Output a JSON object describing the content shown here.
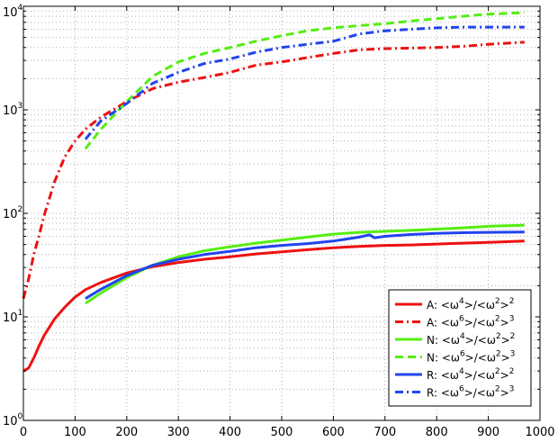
{
  "chart_data": {
    "type": "line",
    "title": "",
    "xlabel": "",
    "ylabel": "",
    "xlim": [
      0,
      1000
    ],
    "ylim": [
      1,
      10000
    ],
    "yscale": "log",
    "grid": true,
    "legend_placement": "bottom-right",
    "x_ticks": [
      "0",
      "100",
      "200",
      "300",
      "400",
      "500",
      "600",
      "700",
      "800",
      "900",
      "1000"
    ],
    "y_ticks": [
      {
        "base": "10",
        "exp": "0"
      },
      {
        "base": "10",
        "exp": "1"
      },
      {
        "base": "10",
        "exp": "2"
      },
      {
        "base": "10",
        "exp": "3"
      },
      {
        "base": "10",
        "exp": "4"
      }
    ],
    "series": [
      {
        "name": "A: <ω⁴>/<ω²>²",
        "legend": {
          "prefix": "A: <ω",
          "p1": "4",
          "mid": ">/<ω",
          "p2": "2",
          "close": ">",
          "p3": "2"
        },
        "color": "#ee1111",
        "style": "solid",
        "x": [
          0,
          10,
          20,
          30,
          40,
          60,
          80,
          100,
          120,
          150,
          200,
          250,
          300,
          350,
          400,
          450,
          500,
          550,
          600,
          650,
          700,
          750,
          800,
          850,
          900,
          970
        ],
        "y": [
          3.0,
          3.2,
          4.0,
          5.2,
          6.6,
          9.5,
          12.4,
          15.5,
          18.3,
          21.5,
          26.5,
          30.5,
          33.5,
          36.0,
          38.0,
          40.5,
          42.5,
          44.5,
          46.5,
          48.0,
          49.0,
          49.5,
          50.5,
          51.5,
          52.5,
          54.0
        ]
      },
      {
        "name": "A: <ω⁶>/<ω²>³",
        "legend": {
          "prefix": "A: <ω",
          "p1": "6",
          "mid": ">/<ω",
          "p2": "2",
          "close": ">",
          "p3": "3"
        },
        "color": "#ee1111",
        "style": "dashdot",
        "x": [
          0,
          10,
          20,
          30,
          40,
          60,
          80,
          100,
          120,
          150,
          200,
          250,
          300,
          350,
          400,
          450,
          500,
          550,
          600,
          650,
          700,
          750,
          800,
          850,
          900,
          970
        ],
        "y": [
          15,
          23,
          40,
          60,
          95,
          200,
          350,
          500,
          650,
          850,
          1200,
          1600,
          1850,
          2050,
          2300,
          2700,
          2900,
          3200,
          3500,
          3800,
          3900,
          3950,
          4000,
          4100,
          4300,
          4500
        ]
      },
      {
        "name": "N: <ω⁴>/<ω²>²",
        "legend": {
          "prefix": "N: <ω",
          "p1": "4",
          "mid": ">/<ω",
          "p2": "2",
          "close": ">",
          "p3": "2"
        },
        "color": "#55ee11",
        "style": "solid",
        "x": [
          120,
          150,
          200,
          250,
          300,
          350,
          400,
          450,
          500,
          550,
          600,
          650,
          700,
          750,
          800,
          850,
          900,
          970
        ],
        "y": [
          13.5,
          17.0,
          24.0,
          31.5,
          38.0,
          43.5,
          47.5,
          51.5,
          55.0,
          59.0,
          63.0,
          65.5,
          67.0,
          68.5,
          70.5,
          72.5,
          75.0,
          77.0
        ]
      },
      {
        "name": "N: <ω⁶>/<ω²>³",
        "legend": {
          "prefix": "N: <ω",
          "p1": "6",
          "mid": ">/<ω",
          "p2": "2",
          "close": ">",
          "p3": "3"
        },
        "color": "#55ee11",
        "style": "dash",
        "x": [
          120,
          150,
          200,
          250,
          300,
          350,
          400,
          450,
          500,
          550,
          600,
          650,
          700,
          750,
          800,
          850,
          900,
          970
        ],
        "y": [
          420,
          650,
          1200,
          2100,
          2900,
          3500,
          4000,
          4600,
          5200,
          5800,
          6200,
          6500,
          6800,
          7200,
          7600,
          8000,
          8400,
          8700
        ]
      },
      {
        "name": "R: <ω⁴>/<ω²>²",
        "legend": {
          "prefix": "R: <ω",
          "p1": "4",
          "mid": ">/<ω",
          "p2": "2",
          "close": ">",
          "p3": "2"
        },
        "color": "#2244ee",
        "style": "solid",
        "x": [
          120,
          150,
          200,
          250,
          300,
          350,
          400,
          450,
          500,
          550,
          600,
          650,
          670,
          680,
          700,
          750,
          800,
          850,
          900,
          970
        ],
        "y": [
          15.0,
          18.5,
          25.0,
          31.5,
          36.0,
          40.0,
          43.0,
          46.5,
          49.0,
          51.0,
          54.0,
          59.0,
          62.0,
          58.0,
          60.0,
          62.5,
          64.0,
          65.0,
          65.5,
          66.0
        ]
      },
      {
        "name": "R: <ω⁶>/<ω²>³",
        "legend": {
          "prefix": "R: <ω",
          "p1": "6",
          "mid": ">/<ω",
          "p2": "2",
          "close": ">",
          "p3": "3"
        },
        "color": "#2244ee",
        "style": "dashdot",
        "x": [
          120,
          150,
          200,
          250,
          300,
          350,
          400,
          450,
          500,
          550,
          600,
          650,
          700,
          750,
          800,
          850,
          900,
          970
        ],
        "y": [
          520,
          780,
          1150,
          1800,
          2300,
          2800,
          3100,
          3600,
          4000,
          4300,
          4600,
          5400,
          5800,
          6000,
          6200,
          6300,
          6300,
          6300
        ]
      }
    ]
  }
}
